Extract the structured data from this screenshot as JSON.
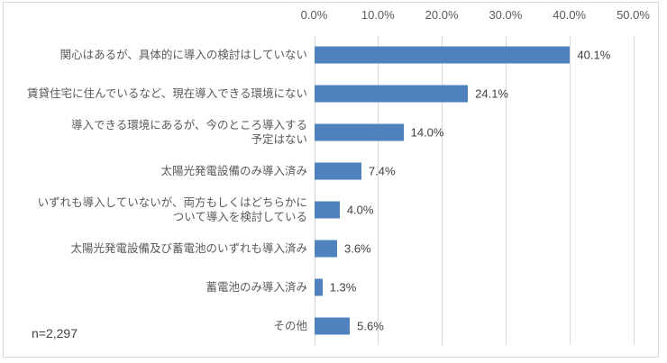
{
  "chart_data": {
    "type": "bar",
    "orientation": "horizontal",
    "title": "",
    "xlabel": "",
    "ylabel": "",
    "xlim": [
      0,
      50
    ],
    "grid": true,
    "legend": "none",
    "bar_color": "#4E81BD",
    "gridline_color": "#D9D9D9",
    "x_ticks": [
      "0.0%",
      "10.0%",
      "20.0%",
      "30.0%",
      "40.0%",
      "50.0%"
    ],
    "x_tick_values": [
      0,
      10,
      20,
      30,
      40,
      50
    ],
    "categories": [
      "関心はあるが、具体的に導入の検討はしていない",
      "賃貸住宅に住んでいるなど、現在導入できる環境にない",
      "導入できる環境にあるが、今のところ導入する\n予定はない",
      "太陽光発電設備のみ導入済み",
      "いずれも導入していないが、両方もしくはどちらかに\nついて導入を検討している",
      "太陽光発電設備及び蓄電池のいずれも導入済み",
      "蓄電池のみ導入済み",
      "その他"
    ],
    "values": [
      40.1,
      24.1,
      14.0,
      7.4,
      4.0,
      3.6,
      1.3,
      5.6
    ],
    "value_labels": [
      "40.1%",
      "24.1%",
      "14.0%",
      "7.4%",
      "4.0%",
      "3.6%",
      "1.3%",
      "5.6%"
    ],
    "note": "n=2,297"
  }
}
